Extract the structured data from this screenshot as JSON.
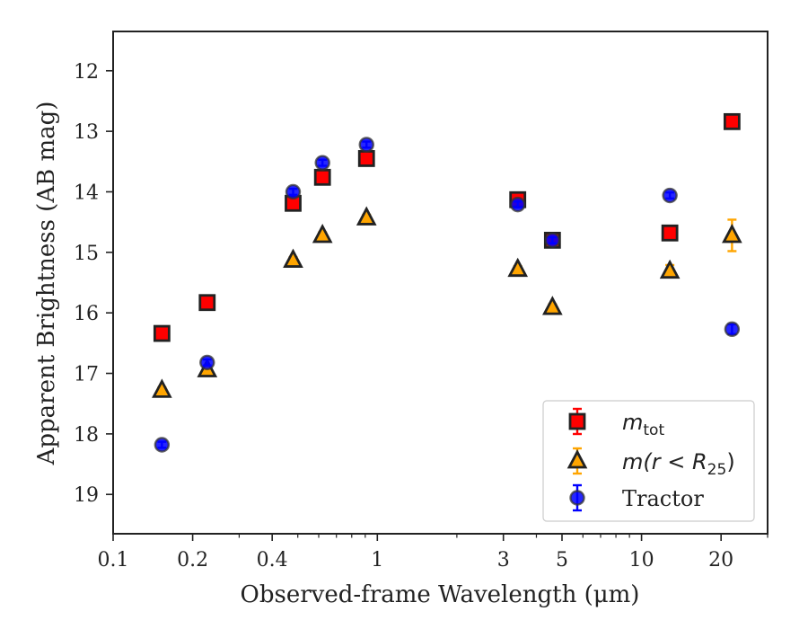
{
  "chart_data": {
    "type": "scatter",
    "xlabel": "Observed-frame Wavelength (μm)",
    "ylabel": "Apparent Brightness (AB mag)",
    "xscale": "log",
    "xlim": [
      0.1,
      30
    ],
    "ylim": [
      19.65,
      11.35
    ],
    "y_inverted": true,
    "x_ticks": [
      0.1,
      0.2,
      0.4,
      1,
      3,
      5,
      10,
      20
    ],
    "x_tick_labels": [
      "0.1",
      "0.2",
      "0.4",
      "1",
      "3",
      "5",
      "10",
      "20"
    ],
    "y_ticks": [
      12,
      13,
      14,
      15,
      16,
      17,
      18,
      19
    ],
    "y_tick_labels": [
      "12",
      "13",
      "14",
      "15",
      "16",
      "17",
      "18",
      "19"
    ],
    "grid": false,
    "legend_position": "bottom-right",
    "series": [
      {
        "name": "m_tot",
        "marker": "square",
        "color": "#ff0000",
        "points": [
          {
            "x": 0.153,
            "y": 16.34,
            "err": 0.05
          },
          {
            "x": 0.227,
            "y": 15.83,
            "err": 0.05
          },
          {
            "x": 0.48,
            "y": 14.19,
            "err": 0.05
          },
          {
            "x": 0.62,
            "y": 13.76,
            "err": 0.05
          },
          {
            "x": 0.91,
            "y": 13.45,
            "err": 0.05
          },
          {
            "x": 3.4,
            "y": 14.13,
            "err": 0.05
          },
          {
            "x": 4.6,
            "y": 14.8,
            "err": 0.05
          },
          {
            "x": 12.8,
            "y": 14.68,
            "err": 0.05
          },
          {
            "x": 22.0,
            "y": 12.84,
            "err": 0.05
          }
        ]
      },
      {
        "name": "m(r < R25)",
        "marker": "triangle",
        "color": "#ffa500",
        "points": [
          {
            "x": 0.153,
            "y": 17.28,
            "err": 0.05
          },
          {
            "x": 0.227,
            "y": 16.94,
            "err": 0.05
          },
          {
            "x": 0.48,
            "y": 15.13,
            "err": 0.05
          },
          {
            "x": 0.62,
            "y": 14.72,
            "err": 0.05
          },
          {
            "x": 0.91,
            "y": 14.43,
            "err": 0.05
          },
          {
            "x": 3.4,
            "y": 15.28,
            "err": 0.05
          },
          {
            "x": 4.6,
            "y": 15.91,
            "err": 0.05
          },
          {
            "x": 12.8,
            "y": 15.31,
            "err": 0.1
          },
          {
            "x": 22.0,
            "y": 14.72,
            "err": 0.26
          }
        ]
      },
      {
        "name": "Tractor",
        "marker": "circle",
        "color": "#0000ff",
        "points": [
          {
            "x": 0.153,
            "y": 18.18,
            "err": 0.05
          },
          {
            "x": 0.227,
            "y": 16.82,
            "err": 0.05
          },
          {
            "x": 0.48,
            "y": 14.0,
            "err": 0.05
          },
          {
            "x": 0.62,
            "y": 13.52,
            "err": 0.05
          },
          {
            "x": 0.91,
            "y": 13.22,
            "err": 0.05
          },
          {
            "x": 3.4,
            "y": 14.21,
            "err": 0.05
          },
          {
            "x": 4.6,
            "y": 14.8,
            "err": 0.05
          },
          {
            "x": 12.8,
            "y": 14.06,
            "err": 0.05
          },
          {
            "x": 22.0,
            "y": 16.27,
            "err": 0.08
          }
        ]
      }
    ]
  },
  "legend": {
    "entries": [
      {
        "base": "m",
        "sub": "tot",
        "rest": ""
      },
      {
        "base": "m",
        "sub": "",
        "rest": "(r < R"
      },
      {
        "base": "Tractor",
        "sub": "",
        "rest": ""
      }
    ],
    "r25_sub": "25",
    "r25_close": ")"
  }
}
